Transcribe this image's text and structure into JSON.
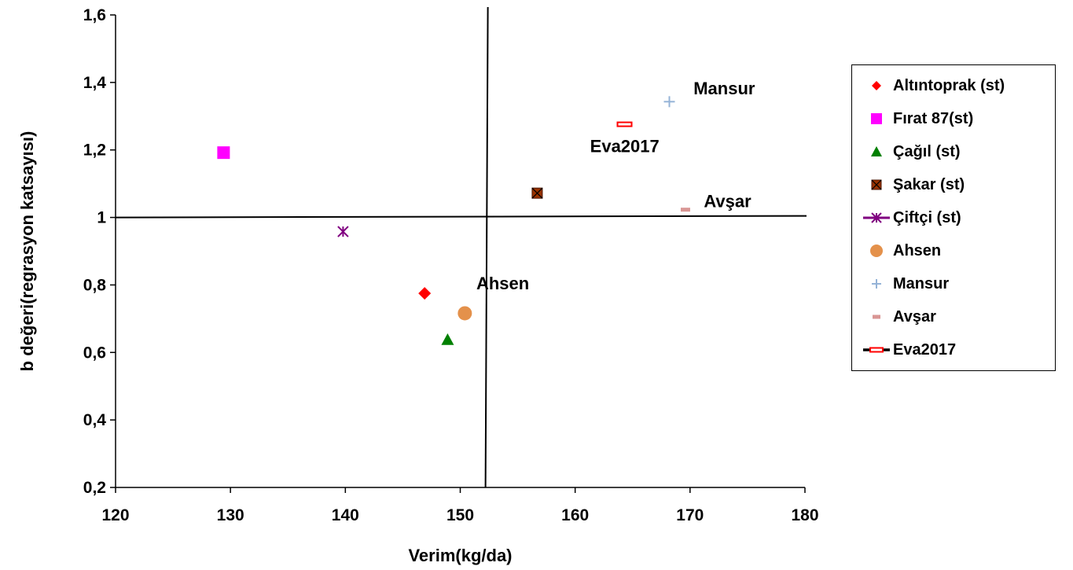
{
  "chart_data": {
    "type": "scatter",
    "xlabel": "Verim(kg/da)",
    "ylabel": "b değeri(regrasyon katsayısı)",
    "xlim": [
      120,
      180
    ],
    "ylim": [
      0.2,
      1.6
    ],
    "x_ticks": [
      "120",
      "130",
      "140",
      "150",
      "160",
      "170",
      "180"
    ],
    "y_ticks": [
      "0,2",
      "0,4",
      "0,6",
      "0,8",
      "1",
      "1,2",
      "1,4",
      "1,6"
    ],
    "reference_lines": {
      "vertical_x": 152.3,
      "horizontal_y": 1.0
    },
    "legend_position": "right",
    "series": [
      {
        "name": "Altıntoprak (st)",
        "x": 146.9,
        "y": 0.775,
        "marker": "diamond",
        "color": "#ff0000"
      },
      {
        "name": "Fırat 87(st)",
        "x": 129.4,
        "y": 1.192,
        "marker": "square",
        "color": "#ff00ff"
      },
      {
        "name": "Çağıl (st)",
        "x": 148.9,
        "y": 0.638,
        "marker": "triangle",
        "color": "#008000"
      },
      {
        "name": "Şakar (st)",
        "x": 156.7,
        "y": 1.072,
        "marker": "square-x",
        "color": "#993300"
      },
      {
        "name": "Çiftçi (st)",
        "x": 139.8,
        "y": 0.958,
        "marker": "asterisk",
        "color": "#800080"
      },
      {
        "name": "Ahsen",
        "x": 150.4,
        "y": 0.716,
        "marker": "circle",
        "color": "#e4914b"
      },
      {
        "name": "Mansur",
        "x": 168.2,
        "y": 1.343,
        "marker": "plus",
        "color": "#95b3d7"
      },
      {
        "name": "Avşar",
        "x": 169.6,
        "y": 1.023,
        "marker": "dash",
        "color": "#d99694"
      },
      {
        "name": "Eva2017",
        "x": 164.3,
        "y": 1.276,
        "marker": "open-bar",
        "color": "#ff0000"
      }
    ],
    "annotations": [
      {
        "text": "Mansur",
        "x": 170.3,
        "y": 1.365
      },
      {
        "text": "Eva2017",
        "x": 161.3,
        "y": 1.193
      },
      {
        "text": "Avşar",
        "x": 171.2,
        "y": 1.031
      },
      {
        "text": "Ahsen",
        "x": 151.4,
        "y": 0.787
      }
    ]
  }
}
